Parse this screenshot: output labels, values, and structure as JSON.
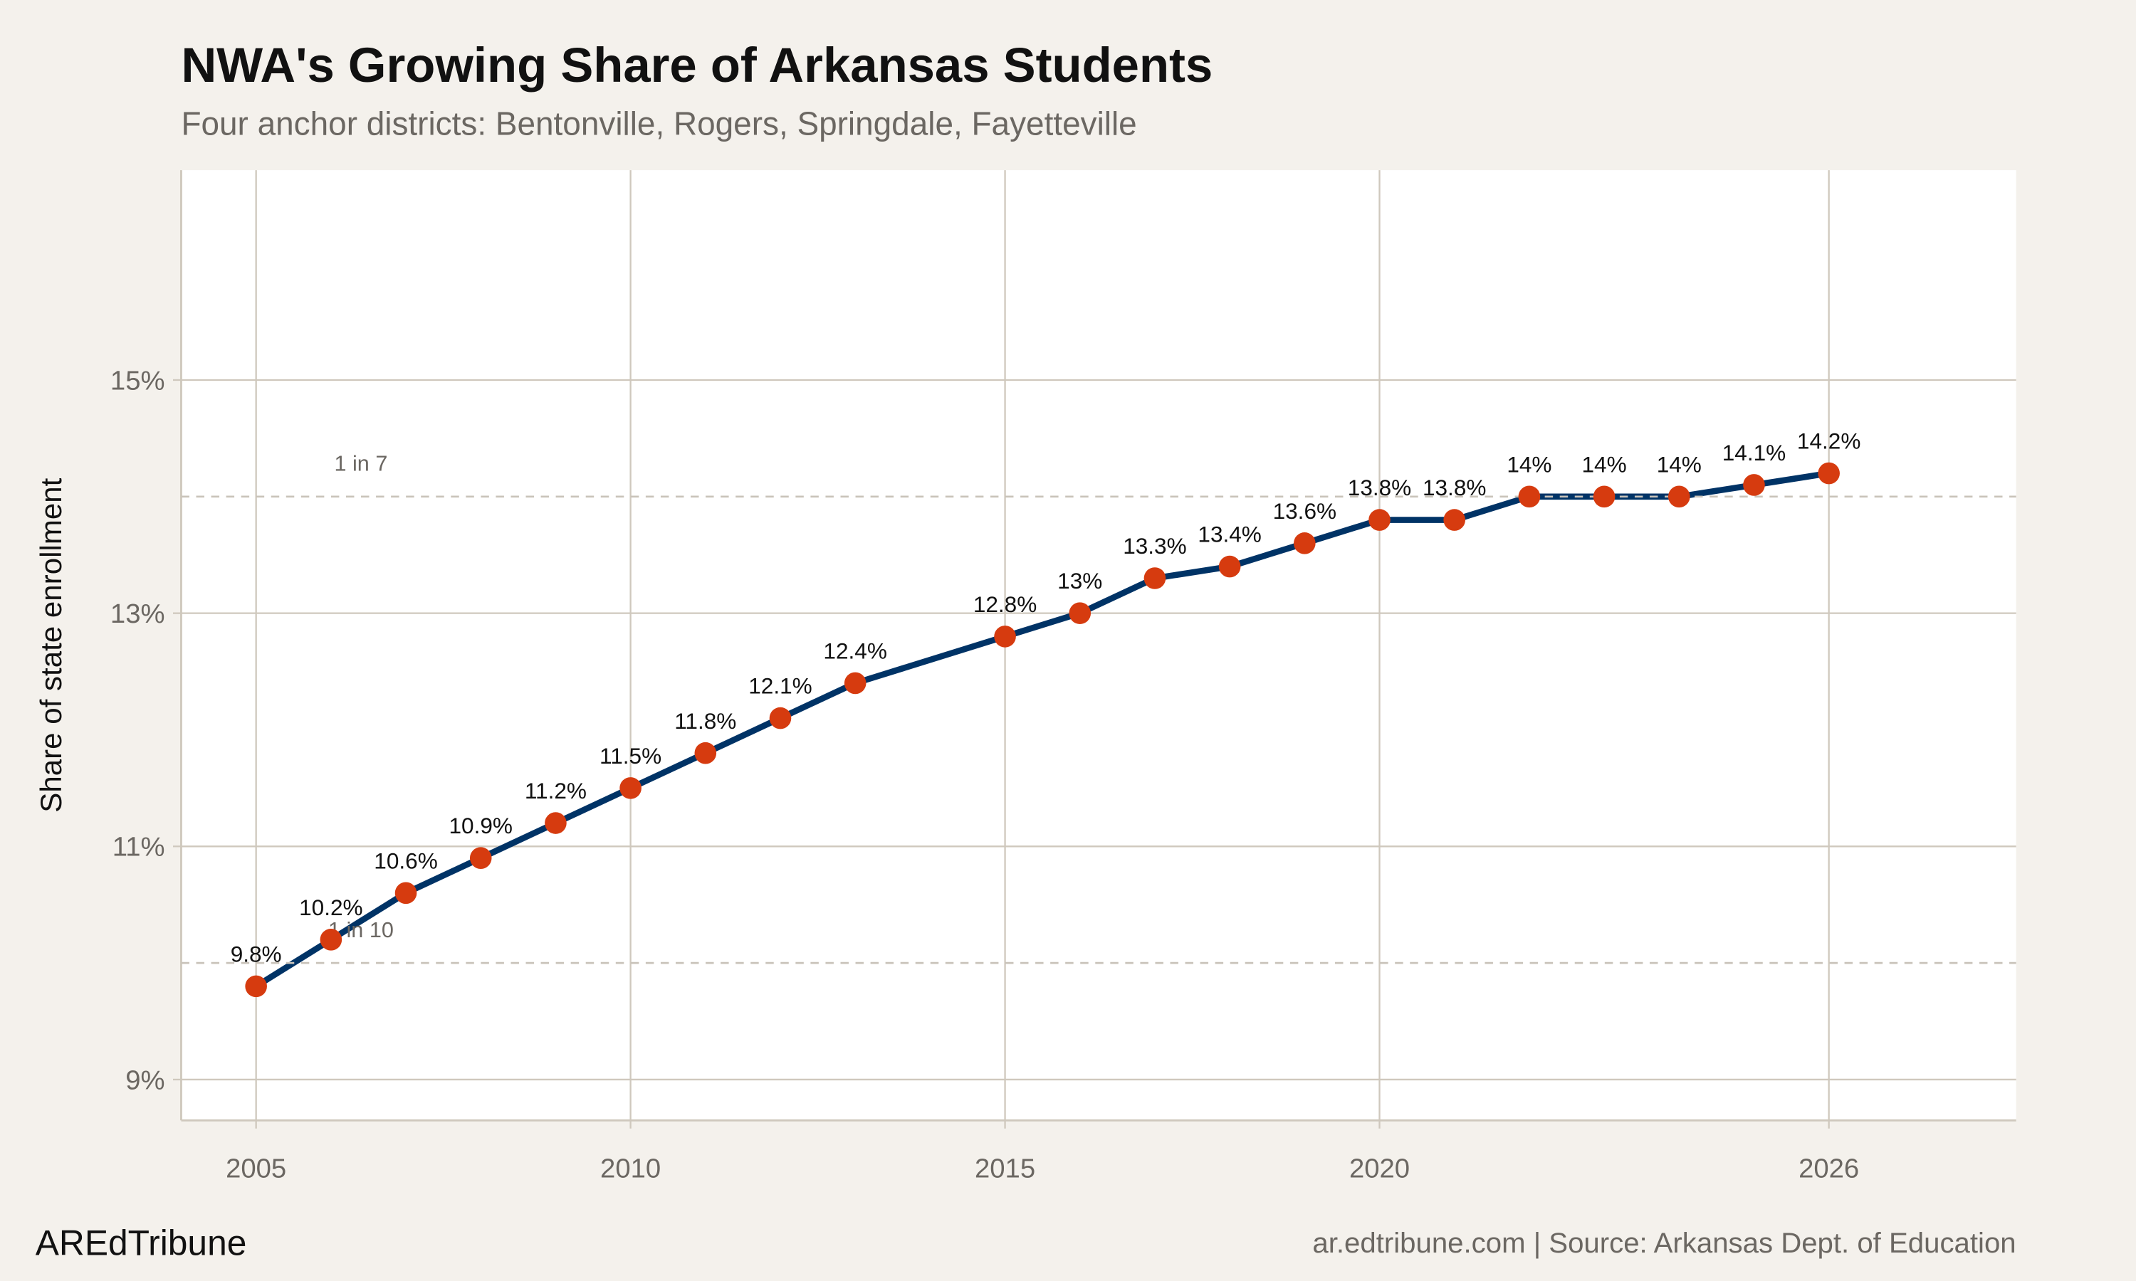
{
  "title": "NWA's Growing Share of Arkansas Students",
  "subtitle": "Four anchor districts: Bentonville, Rogers, Springdale, Fayetteville",
  "footer": {
    "brand": "AREdTribune",
    "source": "ar.edtribune.com | Source: Arkansas Dept. of Education"
  },
  "colors": {
    "line": "#003366",
    "points": "#d63b0f",
    "background": "#f4f1ec",
    "panel": "#ffffff",
    "grid": "#cfc8bd"
  },
  "chart_data": {
    "type": "line",
    "title": "NWA's Growing Share of Arkansas Students",
    "subtitle": "Four anchor districts: Bentonville, Rogers, Springdale, Fayetteville",
    "xlabel": "",
    "ylabel": "Share of state enrollment",
    "x": [
      2005,
      2006,
      2007,
      2008,
      2009,
      2010,
      2011,
      2012,
      2013,
      2015,
      2016,
      2017,
      2018,
      2019,
      2020,
      2021,
      2022,
      2023,
      2024,
      2025,
      2026
    ],
    "values": [
      9.8,
      10.2,
      10.6,
      10.9,
      11.2,
      11.5,
      11.8,
      12.1,
      12.4,
      12.8,
      13,
      13.3,
      13.4,
      13.6,
      13.8,
      13.8,
      14,
      14,
      14,
      14.1,
      14.2
    ],
    "data_labels": [
      "9.8%",
      "10.2%",
      "10.6%",
      "10.9%",
      "11.2%",
      "11.5%",
      "11.8%",
      "12.1%",
      "12.4%",
      "12.8%",
      "13%",
      "13.3%",
      "13.4%",
      "13.6%",
      "13.8%",
      "13.8%",
      "14%",
      "14%",
      "14%",
      "14.1%",
      "14.2%"
    ],
    "xlim": [
      2004,
      2028.5
    ],
    "ylim": [
      8.65,
      16.8
    ],
    "x_ticks": [
      2005,
      2010,
      2015,
      2020,
      2026
    ],
    "x_tick_labels": [
      "2005",
      "2010",
      "2015",
      "2020",
      "2026"
    ],
    "y_ticks": [
      9,
      11,
      13,
      15
    ],
    "y_tick_labels": [
      "9%",
      "11%",
      "13%",
      "15%"
    ],
    "grid": true,
    "legend": "none",
    "reference_lines": [
      {
        "y": 10,
        "label": "1 in 10",
        "style": "dashed"
      },
      {
        "y": 14,
        "label": "1 in 7",
        "style": "dashed"
      }
    ]
  }
}
